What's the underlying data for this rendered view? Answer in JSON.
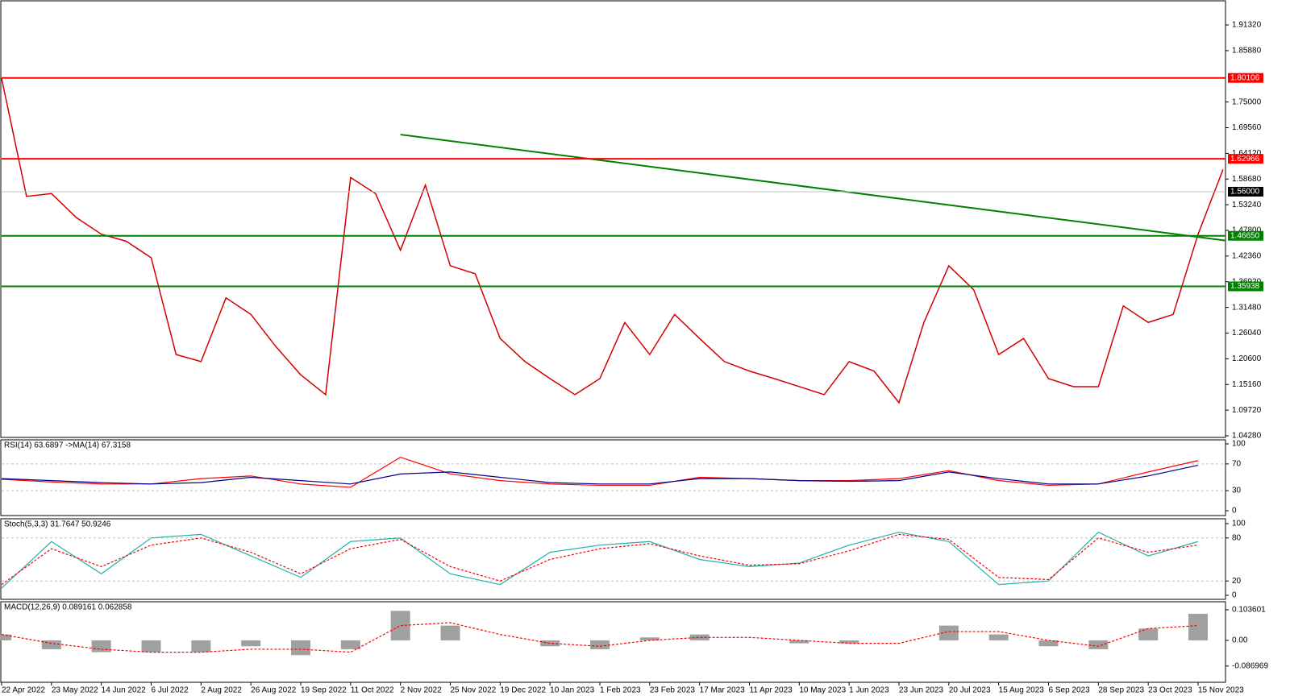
{
  "chart_data": [
    {
      "type": "line",
      "categories": [
        "22 Apr 2022",
        null,
        "23 May 2022",
        null,
        "14 Jun 2022",
        null,
        "6 Jul 2022",
        null,
        "2 Aug 2022",
        null,
        "26 Aug 2022",
        null,
        "19 Sep 2022",
        null,
        "11 Oct 2022",
        null,
        "2 Nov 2022",
        null,
        "25 Nov 2022",
        null,
        "19 Dec 2022",
        null,
        "10 Jan 2023",
        null,
        "1 Feb 2023",
        null,
        "23 Feb 2023",
        null,
        "17 Mar 2023",
        null,
        "11 Apr 2023",
        null,
        "10 May 2023",
        null,
        "1 Jun 2023",
        null,
        "23 Jun 2023",
        null,
        "20 Jul 2023",
        null,
        "15 Aug 2023",
        null,
        "6 Sep 2023",
        null,
        "28 Sep 2023",
        null,
        "23 Oct 2023",
        null,
        "15 Nov 2023",
        null
      ],
      "values": [
        1.8,
        1.55,
        1.556,
        1.505,
        1.47,
        1.455,
        1.42,
        1.215,
        1.2,
        1.335,
        1.3,
        1.232,
        1.172,
        1.13,
        1.59,
        1.556,
        1.436,
        1.574,
        1.403,
        1.386,
        1.249,
        1.2,
        1.164,
        1.13,
        1.164,
        1.283,
        1.215,
        1.3,
        1.249,
        1.2,
        1.18,
        1.164,
        1.147,
        1.13,
        1.2,
        1.18,
        1.113,
        1.283,
        1.403,
        1.352,
        1.215,
        1.249,
        1.164,
        1.147,
        1.147,
        1.318,
        1.283,
        1.3,
        1.47,
        1.607
      ],
      "color": "#d40000",
      "ylim": [
        1.0394,
        1.9627
      ],
      "yticks": [
        {
          "value": 1.9132,
          "label": "1.91320"
        },
        {
          "value": 1.8588,
          "label": "1.85880"
        },
        {
          "value": 1.75,
          "label": "1.75000"
        },
        {
          "value": 1.6956,
          "label": "1.69560"
        },
        {
          "value": 1.6412,
          "label": "1.64120"
        },
        {
          "value": 1.5868,
          "label": "1.58680"
        },
        {
          "value": 1.5324,
          "label": "1.53240"
        },
        {
          "value": 1.478,
          "label": "1.47800"
        },
        {
          "value": 1.4236,
          "label": "1.42360"
        },
        {
          "value": 1.3692,
          "label": "1.36920"
        },
        {
          "value": 1.3148,
          "label": "1.31480"
        },
        {
          "value": 1.2604,
          "label": "1.26040"
        },
        {
          "value": 1.206,
          "label": "1.20600"
        },
        {
          "value": 1.1516,
          "label": "1.15160"
        },
        {
          "value": 1.0972,
          "label": "1.09720"
        },
        {
          "value": 1.0428,
          "label": "1.04280"
        }
      ],
      "hlines": [
        {
          "value": 1.56,
          "label": "1.56000",
          "color": "#c0c0c0",
          "box": "#000000"
        },
        {
          "value": 1.80106,
          "label": "1.80106",
          "color": "#ff0000",
          "box": "#ff0000"
        },
        {
          "value": 1.62966,
          "label": "1.62966",
          "color": "#ff0000",
          "box": "#ff0000"
        },
        {
          "value": 1.4665,
          "label": "1.46650",
          "color": "#008000",
          "box": "#008000"
        },
        {
          "value": 1.35938,
          "label": "1.35938",
          "color": "#008000",
          "box": "#008000"
        }
      ],
      "trendline": {
        "color": "#008000",
        "from": {
          "category": "2 Nov 2022",
          "value": 1.681
        },
        "to": {
          "category": "15 Nov 2023",
          "value": 1.464
        }
      }
    },
    {
      "type": "line",
      "title": "RSI(14) 63.6897  ->MA(14) 67.3158",
      "ylim": [
        0,
        100
      ],
      "yticks": [
        0,
        30,
        70,
        100
      ],
      "levels": [
        30,
        70
      ],
      "series": [
        {
          "color": "#ff0000",
          "values": [
            47,
            43,
            40,
            40,
            48,
            52,
            40,
            35,
            80,
            55,
            45,
            40,
            38,
            38,
            50,
            48,
            45,
            45,
            48,
            60,
            45,
            38,
            40,
            58,
            75
          ]
        },
        {
          "color": "#00008b",
          "values": [
            48,
            45,
            42,
            40,
            42,
            50,
            45,
            40,
            55,
            58,
            50,
            42,
            40,
            40,
            48,
            48,
            45,
            44,
            45,
            58,
            48,
            40,
            40,
            52,
            68
          ]
        }
      ]
    },
    {
      "type": "line",
      "title": "Stoch(5,3,3) 31.7647 50.9246",
      "ylim": [
        0,
        100
      ],
      "yticks": [
        0,
        20,
        80,
        100
      ],
      "levels": [
        20,
        80
      ],
      "series": [
        {
          "color": "#20b2aa",
          "values": [
            10,
            75,
            30,
            80,
            85,
            55,
            25,
            75,
            80,
            30,
            15,
            60,
            70,
            75,
            50,
            40,
            45,
            70,
            88,
            75,
            15,
            20,
            88,
            55,
            75
          ]
        },
        {
          "color": "#ff0000",
          "dash": true,
          "values": [
            15,
            65,
            40,
            70,
            80,
            60,
            30,
            65,
            78,
            40,
            20,
            50,
            65,
            72,
            55,
            42,
            44,
            62,
            85,
            78,
            25,
            22,
            80,
            60,
            70
          ]
        }
      ]
    },
    {
      "type": "macd",
      "title": "MACD(12,26,9) 0.089161 0.062858",
      "ylim": [
        -0.142,
        0.128
      ],
      "yticks": [
        0.103601,
        {
          "value": 0,
          "label": "0.00"
        },
        -0.086969
      ],
      "histogram": {
        "color": "#a0a0a0",
        "values": [
          0.02,
          -0.03,
          -0.04,
          -0.04,
          -0.04,
          -0.02,
          -0.05,
          -0.03,
          0.1,
          0.05,
          0,
          -0.02,
          -0.03,
          0.01,
          0.02,
          0,
          -0.01,
          -0.01,
          0,
          0.05,
          0.02,
          -0.02,
          -0.03,
          0.04,
          0.09
        ]
      },
      "signal": {
        "color": "#ff0000",
        "values": [
          0.02,
          -0.01,
          -0.03,
          -0.04,
          -0.04,
          -0.03,
          -0.03,
          -0.04,
          0.05,
          0.06,
          0.02,
          -0.01,
          -0.02,
          0,
          0.01,
          0.01,
          0,
          -0.01,
          -0.01,
          0.03,
          0.03,
          0,
          -0.02,
          0.04,
          0.05
        ]
      }
    }
  ]
}
